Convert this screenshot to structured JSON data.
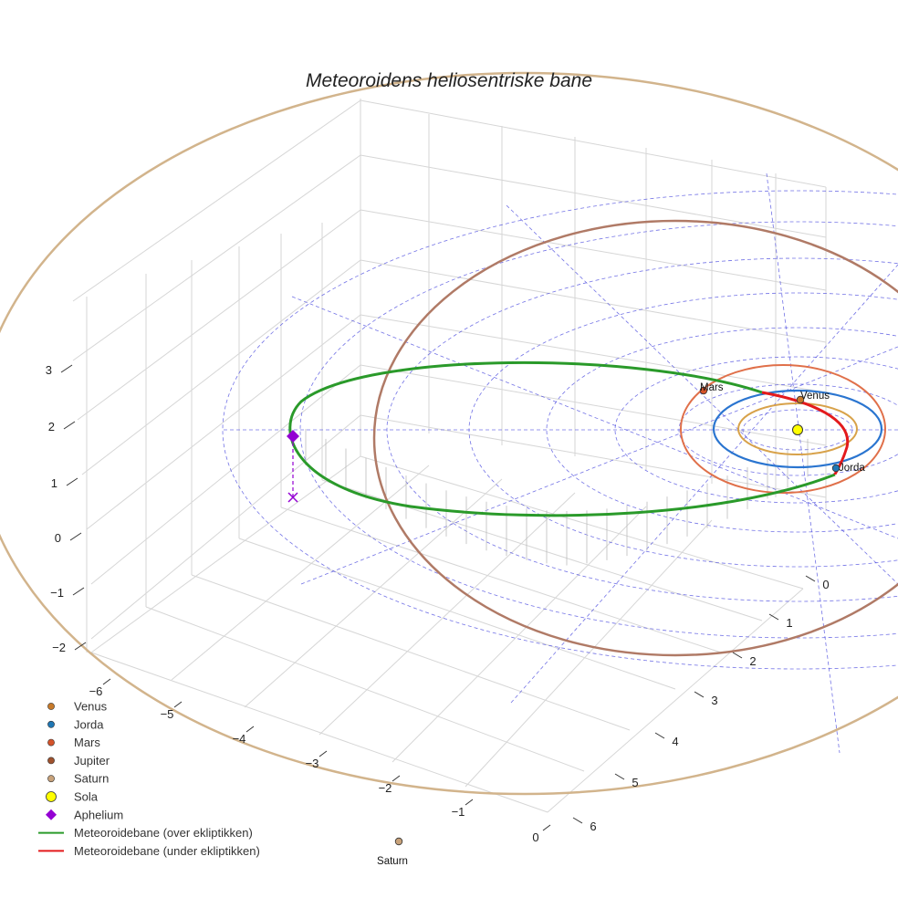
{
  "chart_data": {
    "type": "3d-orbit",
    "title": "Meteoroidens heliosentriske bane",
    "axes": {
      "x_ticks": [
        "−6",
        "−5",
        "−4",
        "−3",
        "−2",
        "−1",
        "0"
      ],
      "y_ticks": [
        "0",
        "1",
        "2",
        "3",
        "4",
        "5",
        "6"
      ],
      "z_ticks": [
        "−2",
        "−1",
        "0",
        "1",
        "2",
        "3"
      ]
    },
    "bodies": [
      {
        "name": "Venus",
        "color": "#c77a2a",
        "orbit_color": "#d8a24a",
        "label": "Venus"
      },
      {
        "name": "Jorda",
        "color": "#1f77b4",
        "orbit_color": "#2a75d0",
        "label": "Jorda"
      },
      {
        "name": "Mars",
        "color": "#d4532a",
        "orbit_color": "#e0704a",
        "label": "Mars"
      },
      {
        "name": "Jupiter",
        "color": "#a0522d",
        "orbit_color": "#b07a66",
        "label": ""
      },
      {
        "name": "Saturn",
        "color": "#c8a27a",
        "orbit_color": "#d2b48c",
        "label": "Saturn"
      }
    ],
    "sun": {
      "name": "Sola",
      "color": "#ffff00"
    },
    "aphelium": {
      "name": "Aphelium",
      "color": "#9400d3"
    },
    "meteoroid": {
      "above": {
        "name": "Meteoroidebane (over ekliptikken)",
        "color": "#2a9a2a"
      },
      "below": {
        "name": "Meteoroidebane (under ekliptikken)",
        "color": "#e31a1c"
      }
    }
  },
  "legend": [
    {
      "label": "Venus",
      "color": "#c77a2a",
      "marker": "dot"
    },
    {
      "label": "Jorda",
      "color": "#1f77b4",
      "marker": "dot"
    },
    {
      "label": "Mars",
      "color": "#d4532a",
      "marker": "dot"
    },
    {
      "label": "Jupiter",
      "color": "#a0522d",
      "marker": "dot"
    },
    {
      "label": "Saturn",
      "color": "#c8a27a",
      "marker": "dot"
    },
    {
      "label": "Sola",
      "color": "#ffff00",
      "marker": "sun"
    },
    {
      "label": "Aphelium",
      "color": "#9400d3",
      "marker": "diamond"
    },
    {
      "label": "Meteoroidebane (over ekliptikken)",
      "color": "#2a9a2a",
      "marker": "line"
    },
    {
      "label": "Meteoroidebane (under ekliptikken)",
      "color": "#e31a1c",
      "marker": "line"
    }
  ]
}
